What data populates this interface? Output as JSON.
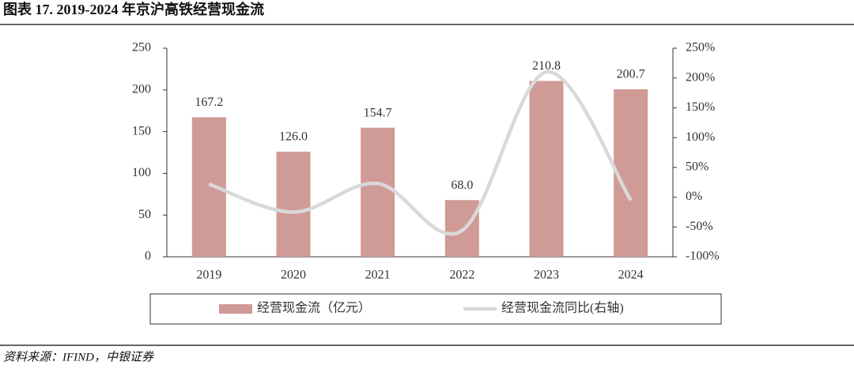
{
  "title": "图表 17. 2019-2024 年京沪高铁经营现金流",
  "source": "资料来源：IFIND，中银证券",
  "chart_data": {
    "type": "bar",
    "categories": [
      "2019",
      "2020",
      "2021",
      "2022",
      "2023",
      "2024"
    ],
    "series": [
      {
        "name": "经营现金流（亿元）",
        "type": "bar",
        "color": "#d09a96",
        "values": [
          167.2,
          126.0,
          154.7,
          68.0,
          210.8,
          200.7
        ],
        "value_labels": [
          "167.2",
          "126.0",
          "154.7",
          "68.0",
          "210.8",
          "200.7"
        ]
      },
      {
        "name": "经营现金流同比(右轴)",
        "type": "line",
        "axis": "y2",
        "color": "#d9d9d9",
        "values": [
          22,
          -25,
          23,
          -56,
          210,
          -5
        ]
      }
    ],
    "ylim": [
      0,
      250
    ],
    "yticks": [
      0,
      50,
      100,
      150,
      200,
      250
    ],
    "y2lim": [
      -100,
      250
    ],
    "y2ticks": [
      {
        "value": -100,
        "label": "-100%"
      },
      {
        "value": -50,
        "label": "-50%"
      },
      {
        "value": 0,
        "label": "0%"
      },
      {
        "value": 50,
        "label": "50%"
      },
      {
        "value": 100,
        "label": "100%"
      },
      {
        "value": 150,
        "label": "150%"
      },
      {
        "value": 200,
        "label": "200%"
      },
      {
        "value": 250,
        "label": "250%"
      }
    ],
    "legend": "bottom"
  }
}
